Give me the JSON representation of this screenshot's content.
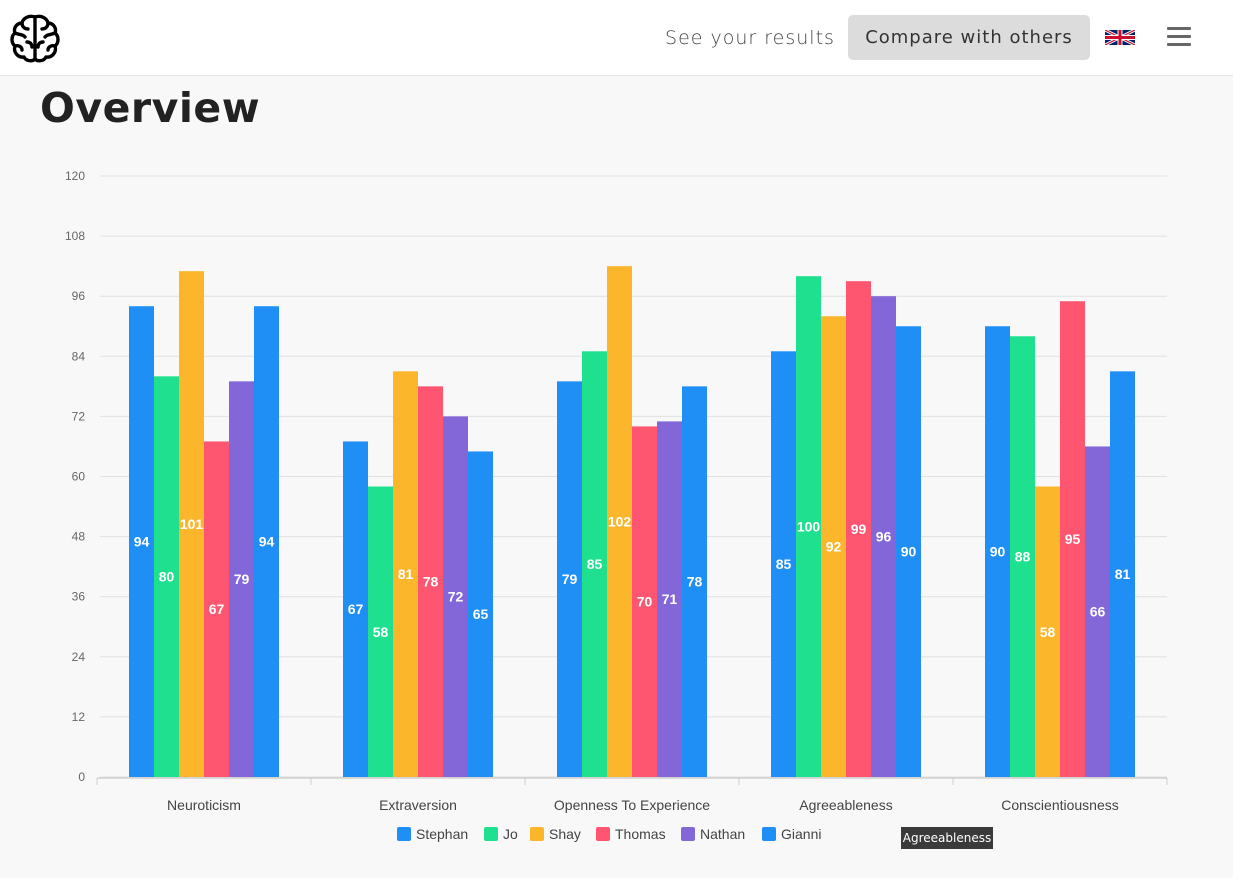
{
  "header": {
    "see_results": "See your results",
    "compare": "Compare with others"
  },
  "page_title": "Overview",
  "tooltip": "Agreeableness",
  "icons": {
    "logo": "brain-icon",
    "flag": "uk-flag-icon",
    "menu": "hamburger-menu-icon"
  },
  "chart_data": {
    "type": "bar",
    "title": "",
    "xlabel": "",
    "ylabel": "",
    "ylim": [
      0,
      120
    ],
    "yticks": [
      0,
      12,
      24,
      36,
      48,
      60,
      72,
      84,
      96,
      108,
      120
    ],
    "grid": true,
    "legend_position": "bottom",
    "categories": [
      "Neuroticism",
      "Extraversion",
      "Openness To Experience",
      "Agreeableness",
      "Conscientiousness"
    ],
    "series": [
      {
        "name": "Stephan",
        "color": "#1f8ff5",
        "values": [
          94,
          67,
          79,
          85,
          90
        ]
      },
      {
        "name": "Jo",
        "color": "#1ee08f",
        "values": [
          80,
          58,
          85,
          100,
          88
        ]
      },
      {
        "name": "Shay",
        "color": "#fbb62c",
        "values": [
          101,
          81,
          102,
          92,
          58
        ]
      },
      {
        "name": "Thomas",
        "color": "#fe5671",
        "values": [
          67,
          78,
          70,
          99,
          95
        ]
      },
      {
        "name": "Nathan",
        "color": "#8367d8",
        "values": [
          79,
          72,
          71,
          96,
          66
        ]
      },
      {
        "name": "Gianni",
        "color": "#1f8ff5",
        "values": [
          94,
          65,
          78,
          90,
          81
        ]
      }
    ]
  }
}
